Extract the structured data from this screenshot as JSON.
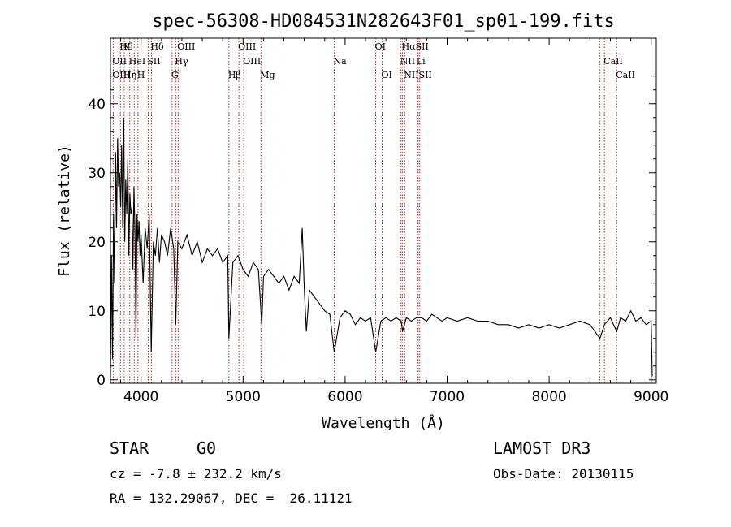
{
  "chart_data": {
    "type": "line",
    "title": "spec-56308-HD084531N282643F01_sp01-199.fits",
    "xlabel": "Wavelength (Å)",
    "ylabel": "Flux (relative)",
    "xlim": [
      3700,
      9050
    ],
    "ylim": [
      -0.5,
      49.5
    ],
    "x_ticks": [
      4000,
      5000,
      6000,
      7000,
      8000,
      9000
    ],
    "y_ticks": [
      0,
      10,
      20,
      30,
      40
    ],
    "series": [
      {
        "name": "spectrum",
        "x": [
          3700,
          3710,
          3720,
          3730,
          3740,
          3750,
          3760,
          3770,
          3780,
          3790,
          3800,
          3810,
          3820,
          3830,
          3840,
          3850,
          3860,
          3870,
          3880,
          3890,
          3900,
          3910,
          3920,
          3930,
          3940,
          3950,
          3960,
          3970,
          3980,
          3990,
          4000,
          4020,
          4040,
          4060,
          4080,
          4100,
          4120,
          4140,
          4160,
          4180,
          4200,
          4230,
          4260,
          4290,
          4320,
          4340,
          4360,
          4400,
          4450,
          4500,
          4550,
          4600,
          4650,
          4700,
          4750,
          4800,
          4850,
          4861,
          4900,
          4950,
          5000,
          5050,
          5100,
          5150,
          5183,
          5200,
          5250,
          5300,
          5350,
          5400,
          5450,
          5500,
          5550,
          5580,
          5600,
          5620,
          5650,
          5700,
          5750,
          5800,
          5850,
          5893,
          5950,
          6000,
          6050,
          6100,
          6150,
          6200,
          6250,
          6300,
          6350,
          6400,
          6450,
          6500,
          6550,
          6563,
          6600,
          6650,
          6700,
          6750,
          6800,
          6850,
          6900,
          6950,
          7000,
          7100,
          7200,
          7300,
          7400,
          7500,
          7600,
          7700,
          7800,
          7900,
          8000,
          8100,
          8200,
          8300,
          8400,
          8498,
          8542,
          8600,
          8662,
          8700,
          8750,
          8800,
          8850,
          8900,
          8950,
          9000,
          9010
        ],
        "values": [
          0.5,
          18,
          3,
          24,
          14,
          33,
          22,
          35,
          28,
          30,
          25,
          34,
          22,
          38,
          20,
          29,
          24,
          32,
          18,
          27,
          24,
          25,
          16,
          28,
          22,
          6,
          24,
          20,
          23,
          18,
          21,
          14,
          22,
          19,
          24,
          4,
          20,
          18,
          22,
          17,
          21,
          20,
          18,
          22,
          19,
          8,
          20,
          19,
          21,
          18,
          20,
          17,
          19,
          18,
          19,
          17,
          18,
          6,
          17,
          18,
          16,
          15,
          17,
          16,
          8,
          15,
          16,
          15,
          14,
          15,
          13,
          15,
          14,
          22,
          13,
          7,
          13,
          12,
          11,
          10,
          9.5,
          4,
          9,
          10,
          9.5,
          8,
          9,
          8.5,
          9,
          4,
          8.5,
          9,
          8.5,
          9,
          8.5,
          7,
          9,
          8.5,
          9,
          9,
          8.5,
          9.5,
          9,
          8.5,
          9,
          8.5,
          9,
          8.5,
          8.5,
          8,
          8,
          7.5,
          8,
          7.5,
          8,
          7.5,
          8,
          8.5,
          8,
          6,
          8,
          9,
          7,
          9,
          8.5,
          10,
          8.5,
          9,
          8,
          8.5,
          0.5
        ]
      }
    ],
    "lines_label_row1": [
      {
        "label": "Hδ",
        "x": 3798
      },
      {
        "label": "K",
        "x": 3835
      },
      {
        "label": "Hδ",
        "x": 4101
      },
      {
        "label": "OIII",
        "x": 4363
      },
      {
        "label": "OIII",
        "x": 4959
      },
      {
        "label": "OI",
        "x": 6300
      },
      {
        "label": "HαSII",
        "x": 6563
      }
    ],
    "lines_label_row2": [
      {
        "label": "OII",
        "x": 3727
      },
      {
        "label": "HeI",
        "x": 3889
      },
      {
        "label": "SII",
        "x": 4069
      },
      {
        "label": "Hγ",
        "x": 4340
      },
      {
        "label": "OIII",
        "x": 5007
      },
      {
        "label": "Na",
        "x": 5893
      },
      {
        "label": "NII",
        "x": 6548
      },
      {
        "label": "Li",
        "x": 6708
      },
      {
        "label": "CaII",
        "x": 8542
      }
    ],
    "lines_label_row3": [
      {
        "label": "OIII",
        "x": 3727
      },
      {
        "label": "Hη",
        "x": 3835
      },
      {
        "label": "H",
        "x": 3969
      },
      {
        "label": "G",
        "x": 4304
      },
      {
        "label": "Hβ",
        "x": 4861
      },
      {
        "label": "Mg",
        "x": 5175
      },
      {
        "label": "OI",
        "x": 6363
      },
      {
        "label": "NIISII",
        "x": 6584
      },
      {
        "label": "CaII",
        "x": 8662
      }
    ],
    "line_positions": [
      3727,
      3798,
      3835,
      3889,
      3933,
      3969,
      4069,
      4101,
      4304,
      4340,
      4363,
      4861,
      4959,
      5007,
      5175,
      5893,
      6300,
      6363,
      6548,
      6563,
      6584,
      6708,
      6716,
      6731,
      8498,
      8542,
      8662
    ]
  },
  "info": {
    "obj_type": "STAR",
    "subclass": "G0",
    "cz": "cz = -7.8 ± 232.2 km/s",
    "radec": "RA = 132.29067, DEC =  26.11121",
    "survey": "LAMOST DR3",
    "obs_date": "Obs-Date: 20130115"
  },
  "colors": {
    "spectrum": "#000000",
    "line_marker": "#b22222",
    "axis": "#000000"
  }
}
